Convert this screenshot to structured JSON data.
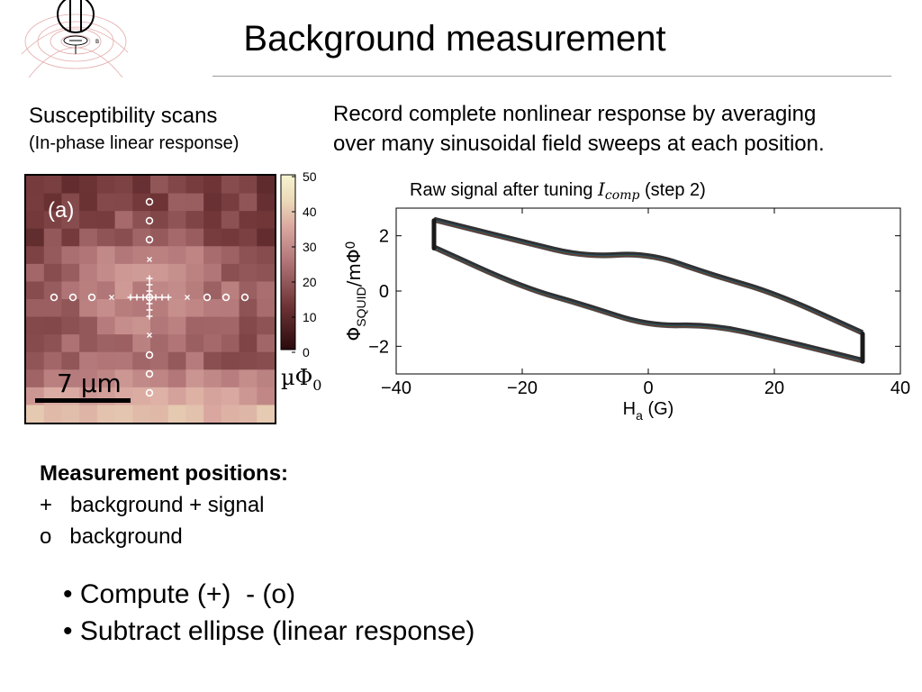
{
  "slide": {
    "title": "Background measurement",
    "logo_icon": "squid-field-line-logo-icon"
  },
  "left_panel": {
    "title": "Susceptibility scans",
    "subtitle": "(In-phase linear response)",
    "map_label": "(a)",
    "scale_bar_label": "7 µm",
    "colorbar_ticks": [
      "50",
      "40",
      "30",
      "20",
      "10",
      "0"
    ],
    "colorbar_unit": "µΦ",
    "colorbar_unit_sub": "0",
    "colors": {
      "low": "#2a0a0c",
      "mid": "#c4898c",
      "high": "#f7f3d0"
    }
  },
  "right_panel": {
    "description_line1": "Record complete nonlinear response by averaging",
    "description_line2": "over many sinusoidal field sweeps at each position.",
    "caption_prefix": "Raw signal after tuning ",
    "caption_symbol": "I",
    "caption_symbol_sub": "comp",
    "caption_suffix": " (step 2)"
  },
  "chart_data": {
    "type": "line",
    "title": "",
    "xlabel": "H",
    "xlabel_sub": "a",
    "xlabel_unit": " (G)",
    "ylabel": "Φ",
    "ylabel_sub": "SQUID",
    "ylabel_unit": "/mΦ",
    "ylabel_unit_sub": "0",
    "xlim": [
      -40,
      40
    ],
    "ylim": [
      -3,
      3
    ],
    "xticks": [
      "−40",
      "−20",
      "0",
      "20",
      "40"
    ],
    "yticks": [
      "2",
      "0",
      "−2"
    ],
    "series": [
      {
        "x": [
          -34,
          -20,
          -10,
          0,
          10,
          20,
          34
        ],
        "values": [
          2.55,
          1.75,
          1.2,
          1.35,
          0.55,
          -0.1,
          -1.55
        ]
      },
      {
        "x": [
          -34,
          -20,
          -10,
          0,
          10,
          20,
          34
        ],
        "values": [
          1.55,
          0.1,
          -0.55,
          -1.3,
          -1.25,
          -1.75,
          -2.55
        ]
      }
    ]
  },
  "positions": {
    "heading": "Measurement positions:",
    "item1": "+   background + signal",
    "item2": "o   background"
  },
  "bullets": {
    "b1": "• Compute (+)  - (o)",
    "b2": "• Subtract ellipse (linear response)"
  }
}
